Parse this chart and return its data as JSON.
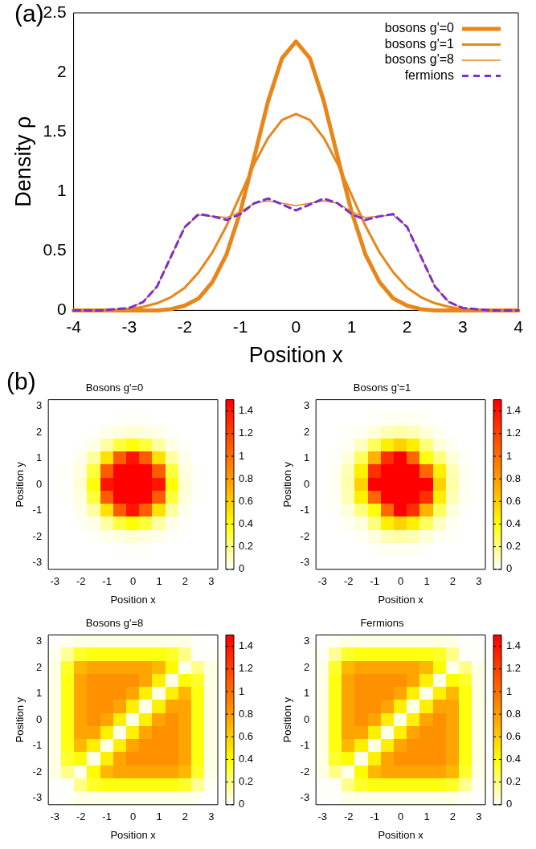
{
  "chart_data": [
    {
      "type": "line",
      "xlabel": "Position x",
      "ylabel": "Density ρ",
      "annotations": [
        "(a)"
      ],
      "legend": "top right",
      "xlim": [
        -4,
        4
      ],
      "ylim": [
        0,
        2.5
      ],
      "xticks": [
        -4,
        -3,
        -2,
        -1,
        0,
        1,
        2,
        3,
        4
      ],
      "yticks": [
        0,
        0.5,
        1,
        1.5,
        2,
        2.5
      ],
      "x": [
        -4,
        -3.75,
        -3.5,
        -3.25,
        -3,
        -2.75,
        -2.5,
        -2.25,
        -2,
        -1.75,
        -1.5,
        -1.25,
        -1,
        -0.75,
        -0.5,
        -0.25,
        0,
        0.25,
        0.5,
        0.75,
        1,
        1.25,
        1.5,
        1.75,
        2,
        2.25,
        2.5,
        2.75,
        3,
        3.25,
        3.5,
        3.75,
        4
      ],
      "series": [
        {
          "name": "bosons g'=0",
          "color": "#e8861a",
          "values": [
            0,
            0,
            0,
            0,
            0,
            0,
            0,
            0.01,
            0.04,
            0.1,
            0.24,
            0.47,
            0.83,
            1.29,
            1.76,
            2.12,
            2.26,
            2.12,
            1.76,
            1.29,
            0.83,
            0.47,
            0.24,
            0.1,
            0.04,
            0.01,
            0,
            0,
            0,
            0,
            0,
            0,
            0
          ]
        },
        {
          "name": "bosons g'=1",
          "color": "#e8861a",
          "values": [
            0,
            0,
            0,
            0,
            0.01,
            0.03,
            0.06,
            0.11,
            0.19,
            0.32,
            0.49,
            0.71,
            0.97,
            1.23,
            1.45,
            1.6,
            1.65,
            1.6,
            1.45,
            1.23,
            0.97,
            0.71,
            0.49,
            0.32,
            0.19,
            0.11,
            0.06,
            0.03,
            0.01,
            0,
            0,
            0,
            0
          ]
        },
        {
          "name": "bosons g'=8",
          "color": "#e8861a",
          "values": [
            0,
            0,
            0,
            0.01,
            0.02,
            0.07,
            0.2,
            0.45,
            0.7,
            0.8,
            0.79,
            0.78,
            0.83,
            0.9,
            0.92,
            0.9,
            0.88,
            0.9,
            0.92,
            0.9,
            0.83,
            0.78,
            0.79,
            0.8,
            0.7,
            0.45,
            0.2,
            0.07,
            0.02,
            0.01,
            0,
            0,
            0
          ]
        },
        {
          "name": "fermions",
          "color": "#7b2fd0",
          "line_style": "dashed",
          "values": [
            0,
            0,
            0,
            0.01,
            0.02,
            0.07,
            0.2,
            0.45,
            0.7,
            0.81,
            0.79,
            0.76,
            0.81,
            0.9,
            0.94,
            0.89,
            0.84,
            0.89,
            0.94,
            0.9,
            0.81,
            0.76,
            0.79,
            0.81,
            0.7,
            0.45,
            0.2,
            0.07,
            0.02,
            0.01,
            0,
            0,
            0
          ]
        }
      ]
    },
    {
      "type": "heatmap",
      "title": "Bosons g'=0",
      "xlabel": "Position x",
      "ylabel": "Position y",
      "annotations": [
        "(b)"
      ],
      "clim": [
        0,
        1.5
      ],
      "cticks": [
        0,
        0.2,
        0.4,
        0.6,
        0.8,
        1,
        1.2,
        1.4
      ],
      "categories": [
        "-3",
        null,
        "-2",
        null,
        "-1",
        null,
        "0",
        null,
        "1",
        null,
        "2",
        null,
        "3"
      ],
      "y_categories": [
        "3",
        null,
        "2",
        null,
        "1",
        null,
        "0",
        null,
        "-1",
        null,
        "-2",
        null,
        "-3"
      ],
      "cells": [
        [
          0,
          0,
          0,
          0,
          0,
          0,
          0,
          0,
          0,
          0,
          0,
          0,
          0
        ],
        [
          0,
          0,
          0,
          0,
          0,
          0.01,
          0.01,
          0.01,
          0,
          0,
          0,
          0,
          0
        ],
        [
          0,
          0,
          0,
          0.01,
          0.03,
          0.05,
          0.07,
          0.05,
          0.03,
          0.01,
          0,
          0,
          0
        ],
        [
          0,
          0,
          0.01,
          0.04,
          0.15,
          0.31,
          0.4,
          0.31,
          0.15,
          0.04,
          0.01,
          0,
          0
        ],
        [
          0,
          0,
          0.03,
          0.15,
          0.52,
          1.09,
          1.41,
          1.09,
          0.52,
          0.15,
          0.03,
          0,
          0
        ],
        [
          0,
          0.01,
          0.05,
          0.31,
          1.09,
          1.5,
          1.5,
          1.5,
          1.09,
          0.31,
          0.05,
          0.01,
          0
        ],
        [
          0,
          0.01,
          0.07,
          0.4,
          1.41,
          1.5,
          1.5,
          1.5,
          1.41,
          0.4,
          0.07,
          0.01,
          0
        ],
        [
          0,
          0.01,
          0.05,
          0.31,
          1.09,
          1.5,
          1.5,
          1.5,
          1.09,
          0.31,
          0.05,
          0.01,
          0
        ],
        [
          0,
          0,
          0.03,
          0.15,
          0.52,
          1.09,
          1.41,
          1.09,
          0.52,
          0.15,
          0.03,
          0,
          0
        ],
        [
          0,
          0,
          0.01,
          0.04,
          0.15,
          0.31,
          0.4,
          0.31,
          0.15,
          0.04,
          0.01,
          0,
          0
        ],
        [
          0,
          0,
          0,
          0.01,
          0.03,
          0.05,
          0.07,
          0.05,
          0.03,
          0.01,
          0,
          0,
          0
        ],
        [
          0,
          0,
          0,
          0,
          0,
          0.01,
          0.01,
          0.01,
          0,
          0,
          0,
          0,
          0
        ],
        [
          0,
          0,
          0,
          0,
          0,
          0,
          0,
          0,
          0,
          0,
          0,
          0,
          0
        ]
      ]
    },
    {
      "type": "heatmap",
      "title": "Bosons g'=1",
      "xlabel": "Position x",
      "ylabel": "Position y",
      "clim": [
        0,
        1.5
      ],
      "cticks": [
        0,
        0.2,
        0.4,
        0.6,
        0.8,
        1,
        1.2,
        1.4
      ],
      "categories": [
        "-3",
        null,
        "-2",
        null,
        "-1",
        null,
        "0",
        null,
        "1",
        null,
        "2",
        null,
        "3"
      ],
      "y_categories": [
        "3",
        null,
        "2",
        null,
        "1",
        null,
        "0",
        null,
        "-1",
        null,
        "-2",
        null,
        "-3"
      ],
      "cells": [
        [
          0,
          0,
          0,
          0,
          0,
          0,
          0,
          0,
          0,
          0,
          0,
          0,
          0
        ],
        [
          0,
          0,
          0,
          0,
          0.01,
          0.02,
          0.02,
          0.02,
          0.01,
          0,
          0,
          0,
          0
        ],
        [
          0,
          0,
          0.01,
          0.02,
          0.06,
          0.12,
          0.14,
          0.12,
          0.06,
          0.02,
          0,
          0,
          0
        ],
        [
          0,
          0,
          0.02,
          0.1,
          0.26,
          0.47,
          0.58,
          0.47,
          0.21,
          0.06,
          0.02,
          0,
          0
        ],
        [
          0,
          0.01,
          0.06,
          0.26,
          0.71,
          1.29,
          1.5,
          1.03,
          0.39,
          0.21,
          0.06,
          0.01,
          0
        ],
        [
          0,
          0.02,
          0.12,
          0.47,
          1.29,
          1.5,
          1.5,
          1.5,
          1.03,
          0.47,
          0.12,
          0.02,
          0
        ],
        [
          0,
          0.02,
          0.14,
          0.58,
          1.5,
          1.5,
          1.5,
          1.5,
          1.5,
          0.58,
          0.14,
          0.02,
          0
        ],
        [
          0,
          0.02,
          0.12,
          0.47,
          1.03,
          1.5,
          1.5,
          1.5,
          1.29,
          0.47,
          0.12,
          0.02,
          0
        ],
        [
          0,
          0.01,
          0.06,
          0.21,
          0.39,
          1.03,
          1.5,
          1.29,
          0.71,
          0.26,
          0.06,
          0.01,
          0
        ],
        [
          0,
          0,
          0.02,
          0.06,
          0.21,
          0.47,
          0.58,
          0.47,
          0.26,
          0.1,
          0.02,
          0,
          0
        ],
        [
          0,
          0,
          0,
          0.02,
          0.06,
          0.12,
          0.14,
          0.12,
          0.06,
          0.02,
          0.01,
          0,
          0
        ],
        [
          0,
          0,
          0,
          0,
          0.01,
          0.02,
          0.02,
          0.02,
          0.01,
          0,
          0,
          0,
          0
        ],
        [
          0,
          0,
          0,
          0,
          0,
          0,
          0,
          0,
          0,
          0,
          0,
          0,
          0
        ]
      ]
    },
    {
      "type": "heatmap",
      "title": "Bosons g'=8",
      "xlabel": "Position x",
      "ylabel": "Position y",
      "clim": [
        0,
        1.5
      ],
      "cticks": [
        0,
        0.2,
        0.4,
        0.6,
        0.8,
        1,
        1.2,
        1.4
      ],
      "categories": [
        "-3",
        null,
        "-2",
        null,
        "-1",
        null,
        "0",
        null,
        "1",
        null,
        "2",
        null,
        "3"
      ],
      "y_categories": [
        "3",
        null,
        "2",
        null,
        "1",
        null,
        "0",
        null,
        "-1",
        null,
        "-2",
        null,
        "-3"
      ],
      "cells": [
        [
          0,
          0.02,
          0.04,
          0.04,
          0.04,
          0.04,
          0.04,
          0.04,
          0.04,
          0.04,
          0.04,
          0.01,
          0
        ],
        [
          0.02,
          0.17,
          0.34,
          0.38,
          0.38,
          0.38,
          0.38,
          0.38,
          0.38,
          0.34,
          0.19,
          0.01,
          0.01
        ],
        [
          0.04,
          0.34,
          0.69,
          0.77,
          0.77,
          0.77,
          0.77,
          0.77,
          0.69,
          0.42,
          0.03,
          0.19,
          0.04
        ],
        [
          0.04,
          0.38,
          0.77,
          0.85,
          0.85,
          0.85,
          0.85,
          0.77,
          0.47,
          0.04,
          0.42,
          0.34,
          0.04
        ],
        [
          0.04,
          0.38,
          0.77,
          0.85,
          0.85,
          0.85,
          0.77,
          0.47,
          0.04,
          0.47,
          0.69,
          0.38,
          0.04
        ],
        [
          0.04,
          0.38,
          0.77,
          0.85,
          0.85,
          0.77,
          0.47,
          0.04,
          0.47,
          0.77,
          0.77,
          0.38,
          0.04
        ],
        [
          0.04,
          0.38,
          0.77,
          0.85,
          0.77,
          0.47,
          0.04,
          0.47,
          0.77,
          0.85,
          0.77,
          0.38,
          0.04
        ],
        [
          0.04,
          0.38,
          0.77,
          0.77,
          0.47,
          0.04,
          0.47,
          0.77,
          0.85,
          0.85,
          0.77,
          0.38,
          0.04
        ],
        [
          0.04,
          0.38,
          0.69,
          0.47,
          0.04,
          0.47,
          0.77,
          0.85,
          0.85,
          0.85,
          0.77,
          0.38,
          0.04
        ],
        [
          0.04,
          0.34,
          0.42,
          0.04,
          0.47,
          0.77,
          0.85,
          0.85,
          0.85,
          0.85,
          0.77,
          0.38,
          0.04
        ],
        [
          0.04,
          0.19,
          0.03,
          0.42,
          0.69,
          0.77,
          0.77,
          0.77,
          0.77,
          0.77,
          0.69,
          0.34,
          0.04
        ],
        [
          0.01,
          0.01,
          0.19,
          0.34,
          0.38,
          0.38,
          0.38,
          0.38,
          0.38,
          0.38,
          0.34,
          0.17,
          0.02
        ],
        [
          0,
          0.01,
          0.04,
          0.04,
          0.04,
          0.04,
          0.04,
          0.04,
          0.04,
          0.04,
          0.04,
          0.02,
          0
        ]
      ]
    },
    {
      "type": "heatmap",
      "title": "Fermions",
      "xlabel": "Position x",
      "ylabel": "Position y",
      "clim": [
        0,
        1.5
      ],
      "cticks": [
        0,
        0.2,
        0.4,
        0.6,
        0.8,
        1,
        1.2,
        1.4
      ],
      "categories": [
        "-3",
        null,
        "-2",
        null,
        "-1",
        null,
        "0",
        null,
        "1",
        null,
        "2",
        null,
        "3"
      ],
      "y_categories": [
        "3",
        null,
        "2",
        null,
        "1",
        null,
        "0",
        null,
        "-1",
        null,
        "-2",
        null,
        "-3"
      ],
      "cells": [
        [
          0,
          0.02,
          0.04,
          0.04,
          0.04,
          0.04,
          0.04,
          0.04,
          0.04,
          0.04,
          0.04,
          0.01,
          0
        ],
        [
          0.02,
          0.17,
          0.34,
          0.38,
          0.38,
          0.38,
          0.38,
          0.38,
          0.38,
          0.34,
          0.19,
          0.01,
          0.01
        ],
        [
          0.04,
          0.34,
          0.69,
          0.77,
          0.77,
          0.77,
          0.77,
          0.77,
          0.69,
          0.42,
          0.03,
          0.19,
          0.04
        ],
        [
          0.04,
          0.38,
          0.77,
          0.85,
          0.85,
          0.85,
          0.85,
          0.77,
          0.47,
          0.04,
          0.42,
          0.34,
          0.04
        ],
        [
          0.04,
          0.38,
          0.77,
          0.85,
          0.85,
          0.85,
          0.77,
          0.47,
          0.04,
          0.47,
          0.69,
          0.38,
          0.04
        ],
        [
          0.04,
          0.38,
          0.77,
          0.85,
          0.85,
          0.77,
          0.47,
          0.04,
          0.47,
          0.77,
          0.77,
          0.38,
          0.04
        ],
        [
          0.04,
          0.38,
          0.77,
          0.85,
          0.77,
          0.47,
          0.04,
          0.47,
          0.77,
          0.85,
          0.77,
          0.38,
          0.04
        ],
        [
          0.04,
          0.38,
          0.77,
          0.77,
          0.47,
          0.04,
          0.47,
          0.77,
          0.85,
          0.85,
          0.77,
          0.38,
          0.04
        ],
        [
          0.04,
          0.38,
          0.69,
          0.47,
          0.04,
          0.47,
          0.77,
          0.85,
          0.85,
          0.85,
          0.77,
          0.38,
          0.04
        ],
        [
          0.04,
          0.34,
          0.42,
          0.04,
          0.47,
          0.77,
          0.85,
          0.85,
          0.85,
          0.85,
          0.77,
          0.38,
          0.04
        ],
        [
          0.04,
          0.19,
          0.03,
          0.42,
          0.69,
          0.77,
          0.77,
          0.77,
          0.77,
          0.77,
          0.69,
          0.34,
          0.04
        ],
        [
          0.01,
          0.01,
          0.19,
          0.34,
          0.38,
          0.38,
          0.38,
          0.38,
          0.38,
          0.38,
          0.34,
          0.17,
          0.02
        ],
        [
          0,
          0.01,
          0.04,
          0.04,
          0.04,
          0.04,
          0.04,
          0.04,
          0.04,
          0.04,
          0.04,
          0.02,
          0
        ]
      ]
    }
  ]
}
